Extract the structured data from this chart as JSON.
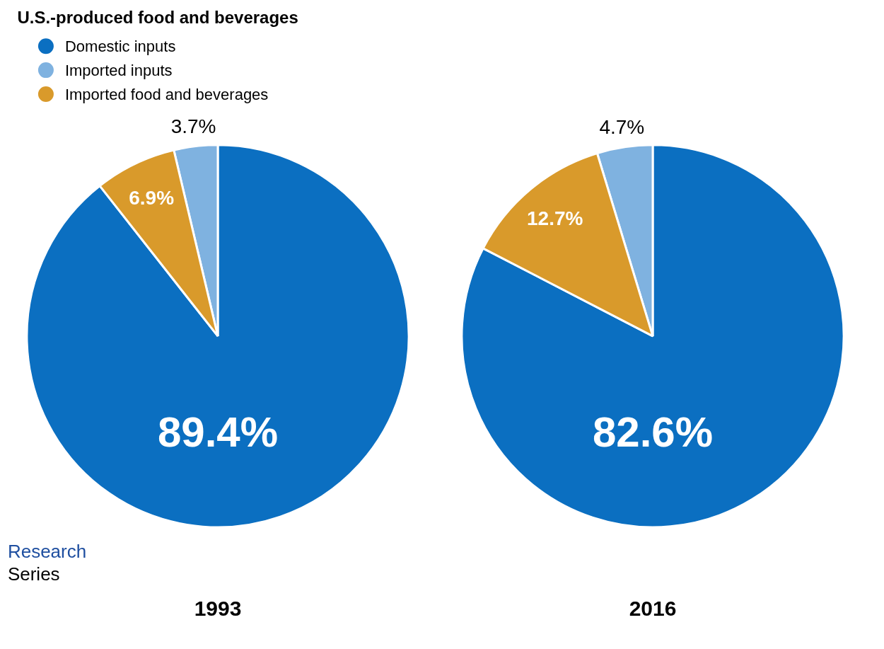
{
  "chart_data": [
    {
      "type": "pie",
      "xlabel": "1993",
      "legend_title": "U.S.-produced food and beverages",
      "legend": "top",
      "categories": [
        "Domestic inputs",
        "Imported inputs",
        "Imported food and beverages"
      ],
      "values": [
        89.4,
        3.7,
        6.9
      ],
      "value_labels": [
        "89.4%",
        "3.7%",
        "6.9%"
      ],
      "colors": [
        "#0b6fc1",
        "#7fb2e0",
        "#d99a2b"
      ],
      "annotations": [
        "Research",
        "Series"
      ]
    },
    {
      "type": "pie",
      "xlabel": "2016",
      "categories": [
        null,
        null,
        null
      ],
      "values": [
        82.6,
        4.7,
        12.7
      ],
      "value_labels": [
        "82.6%",
        "4.7%",
        "12.7%"
      ],
      "colors": [
        "#0b6fc1",
        "#7fb2e0",
        "#d99a2b"
      ]
    }
  ]
}
